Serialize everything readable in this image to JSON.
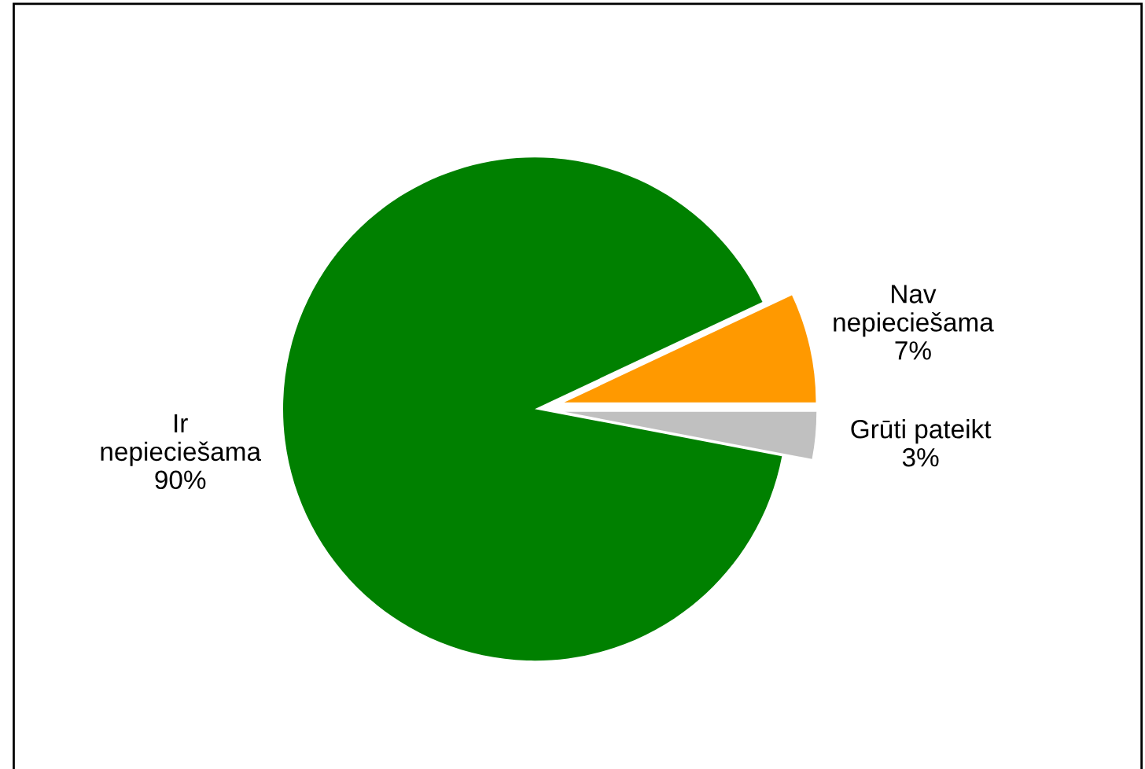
{
  "chart_data": {
    "type": "pie",
    "categories": [
      "Ir\nnepieciešama",
      "Nav\nnepieciešama",
      "Grūti pateikt"
    ],
    "values": [
      90,
      7,
      3
    ],
    "colors": [
      "#008000",
      "#ff9900",
      "#c0c0c0"
    ],
    "value_labels": [
      "90%",
      "7%",
      "3%"
    ],
    "legend": false
  }
}
